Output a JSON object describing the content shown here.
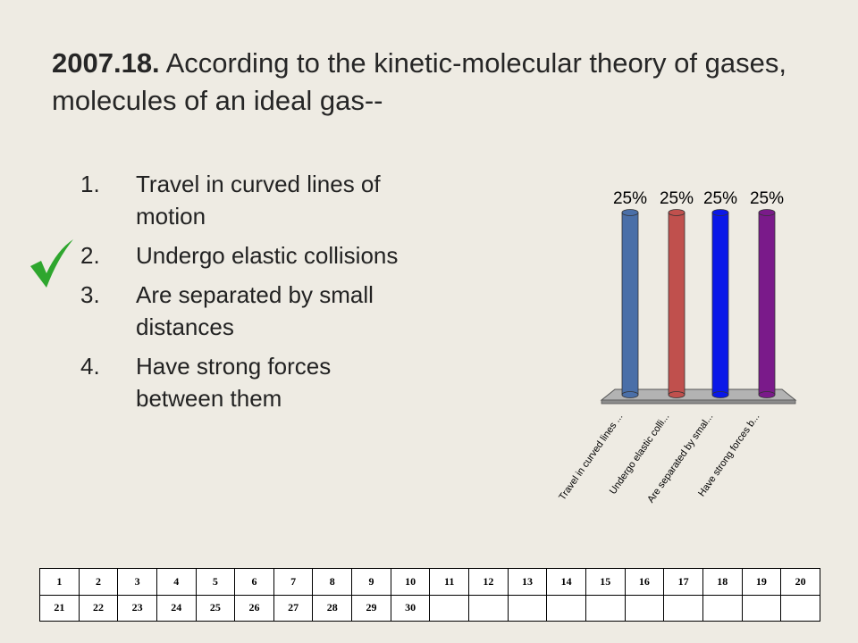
{
  "question": {
    "number": "2007.18.",
    "text": "According to the kinetic-molecular theory of gases, molecules of an ideal gas--"
  },
  "answers": [
    {
      "num": "1.",
      "text": "Travel in curved lines of motion"
    },
    {
      "num": "2.",
      "text": "Undergo elastic collisions",
      "correct": true
    },
    {
      "num": "3.",
      "text": "Are separated by small distances"
    },
    {
      "num": "4.",
      "text": "Have strong forces between them"
    }
  ],
  "check_icon": "checkmark-icon",
  "colors": {
    "check": "#2EA62E",
    "bar1": "#4A6FA8",
    "bar2": "#C0504D",
    "bar3": "#0A18E8",
    "bar4": "#7A1A8A",
    "floor": "#B3B3B3"
  },
  "chart_data": {
    "type": "bar",
    "categories": [
      "Travel in curved lines ...",
      "Undergo elastic colli...",
      "Are separated by smal...",
      "Have strong forces b..."
    ],
    "values": [
      25,
      25,
      25,
      25
    ],
    "data_labels": [
      "25%",
      "25%",
      "25%",
      "25%"
    ],
    "ylim": [
      0,
      25
    ],
    "grid": false,
    "legend": "none"
  },
  "response_grid": {
    "row1": [
      "1",
      "2",
      "3",
      "4",
      "5",
      "6",
      "7",
      "8",
      "9",
      "10",
      "11",
      "12",
      "13",
      "14",
      "15",
      "16",
      "17",
      "18",
      "19",
      "20"
    ],
    "row2": [
      "21",
      "22",
      "23",
      "24",
      "25",
      "26",
      "27",
      "28",
      "29",
      "30",
      "",
      "",
      "",
      "",
      "",
      "",
      "",
      "",
      "",
      ""
    ]
  }
}
